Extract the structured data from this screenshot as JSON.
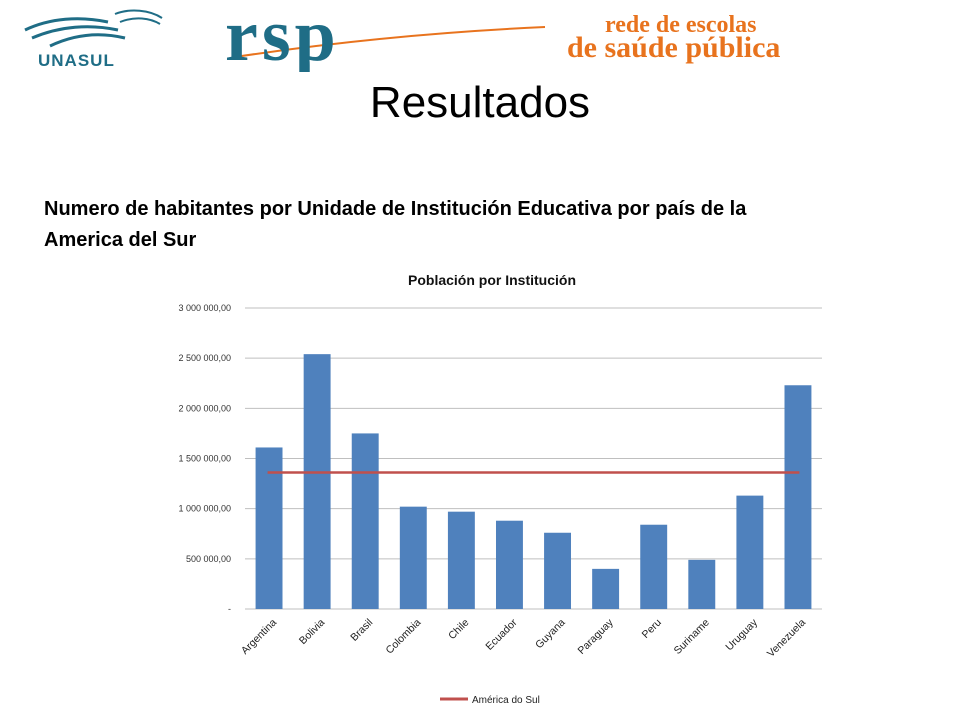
{
  "header": {
    "unasul_logo_text": "UNASUL",
    "rsp_logo_text": "rsp",
    "rsp_tagline_line1": "rede de escolas",
    "rsp_tagline_line2": "de saúde pública"
  },
  "slide": {
    "title": "Resultados",
    "subtitle_line1": "Numero de habitantes por Unidade de  Institución Educativa por país de la",
    "subtitle_line2": "America del Sur"
  },
  "colors": {
    "bar": "#4f81bd",
    "line": "#c0504d",
    "grid": "#bfbfbf",
    "rsp_blue": "#1f6d86",
    "rsp_orange": "#e8731e"
  },
  "chart_data": {
    "type": "bar",
    "title": "Población por Institución",
    "categories": [
      "Argentina",
      "Bolivia",
      "Brasil",
      "Colombia",
      "Chile",
      "Ecuador",
      "Guyana",
      "Paraguay",
      "Peru",
      "Suriname",
      "Uruguay",
      "Venezuela"
    ],
    "series": [
      {
        "values": [
          1610000,
          2540000,
          1750000,
          1020000,
          970000,
          880000,
          760000,
          400000,
          840000,
          490000,
          1130000,
          2230000
        ]
      },
      {
        "name": "América do Sul",
        "type": "line",
        "value": 1360000
      }
    ],
    "ylim": [
      0,
      3000000
    ],
    "yticks": [
      {
        "value": 0,
        "label": "-"
      },
      {
        "value": 500000,
        "label": "500 000,00"
      },
      {
        "value": 1000000,
        "label": "1 000 000,00"
      },
      {
        "value": 1500000,
        "label": "1 500 000,00"
      },
      {
        "value": 2000000,
        "label": "2 000 000,00"
      },
      {
        "value": 2500000,
        "label": "2 500 000,00"
      },
      {
        "value": 3000000,
        "label": "3 000 000,00"
      }
    ],
    "grid": true,
    "legend_position": "bottom"
  }
}
